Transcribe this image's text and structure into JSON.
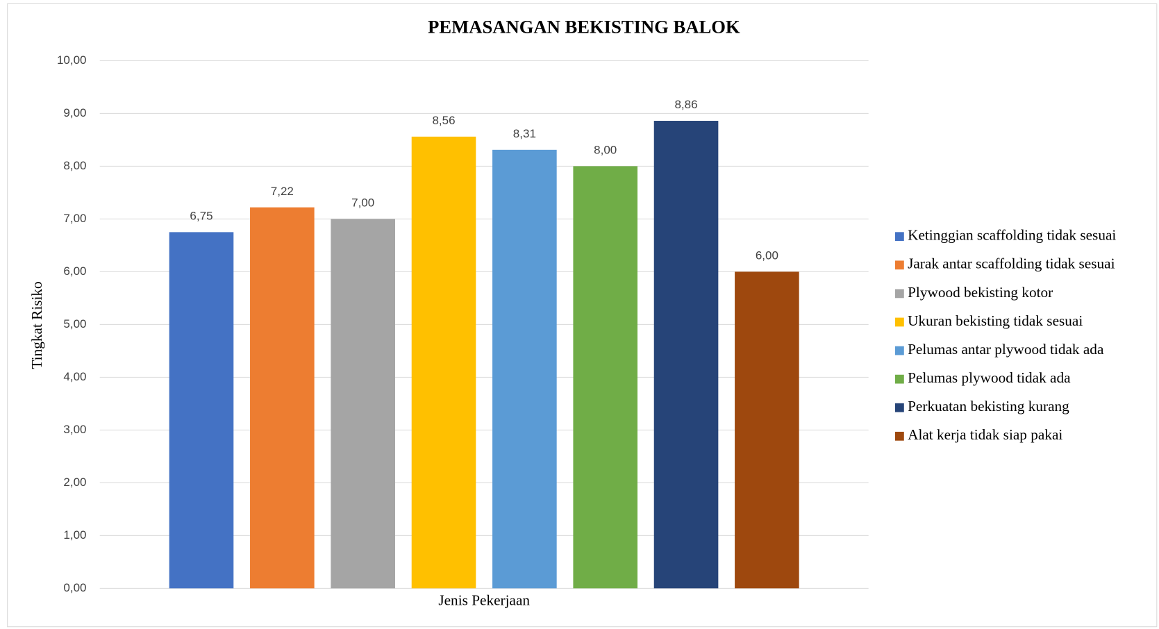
{
  "chart_data": {
    "type": "bar",
    "title": "PEMASANGAN BEKISTING BALOK",
    "x_label": "Jenis Pekerjaan",
    "y_label": "Tingkat Risiko",
    "categories": [
      null
    ],
    "series": [
      {
        "name": "Ketinggian scaffolding tidak sesuai",
        "color": "#4472c4",
        "values": [
          6.75
        ],
        "value_labels": [
          "6,75"
        ]
      },
      {
        "name": "Jarak antar scaffolding tidak sesuai",
        "color": "#ed7d31",
        "values": [
          7.22
        ],
        "value_labels": [
          "7,22"
        ]
      },
      {
        "name": "Plywood bekisting kotor",
        "color": "#a5a5a5",
        "values": [
          7.0
        ],
        "value_labels": [
          "7,00"
        ]
      },
      {
        "name": "Ukuran bekisting tidak sesuai",
        "color": "#ffc000",
        "values": [
          8.56
        ],
        "value_labels": [
          "8,56"
        ]
      },
      {
        "name": "Pelumas antar plywood tidak ada",
        "color": "#5b9bd5",
        "values": [
          8.31
        ],
        "value_labels": [
          "8,31"
        ]
      },
      {
        "name": "Pelumas plywood tidak ada",
        "color": "#70ad47",
        "values": [
          8.0
        ],
        "value_labels": [
          "8,00"
        ]
      },
      {
        "name": "Perkuatan bekisting kurang",
        "color": "#264478",
        "values": [
          8.86
        ],
        "value_labels": [
          "8,86"
        ]
      },
      {
        "name": "Alat kerja tidak siap pakai",
        "color": "#9e480e",
        "values": [
          6.0
        ],
        "value_labels": [
          "6,00"
        ]
      }
    ],
    "ylim": [
      0,
      10
    ],
    "yticks": [
      {
        "value": 0,
        "label": "0,00"
      },
      {
        "value": 1,
        "label": "1,00"
      },
      {
        "value": 2,
        "label": "2,00"
      },
      {
        "value": 3,
        "label": "3,00"
      },
      {
        "value": 4,
        "label": "4,00"
      },
      {
        "value": 5,
        "label": "5,00"
      },
      {
        "value": 6,
        "label": "6,00"
      },
      {
        "value": 7,
        "label": "7,00"
      },
      {
        "value": 8,
        "label": "8,00"
      },
      {
        "value": 9,
        "label": "9,00"
      },
      {
        "value": 10,
        "label": "10,00"
      }
    ],
    "grid": true,
    "legend": "right"
  }
}
